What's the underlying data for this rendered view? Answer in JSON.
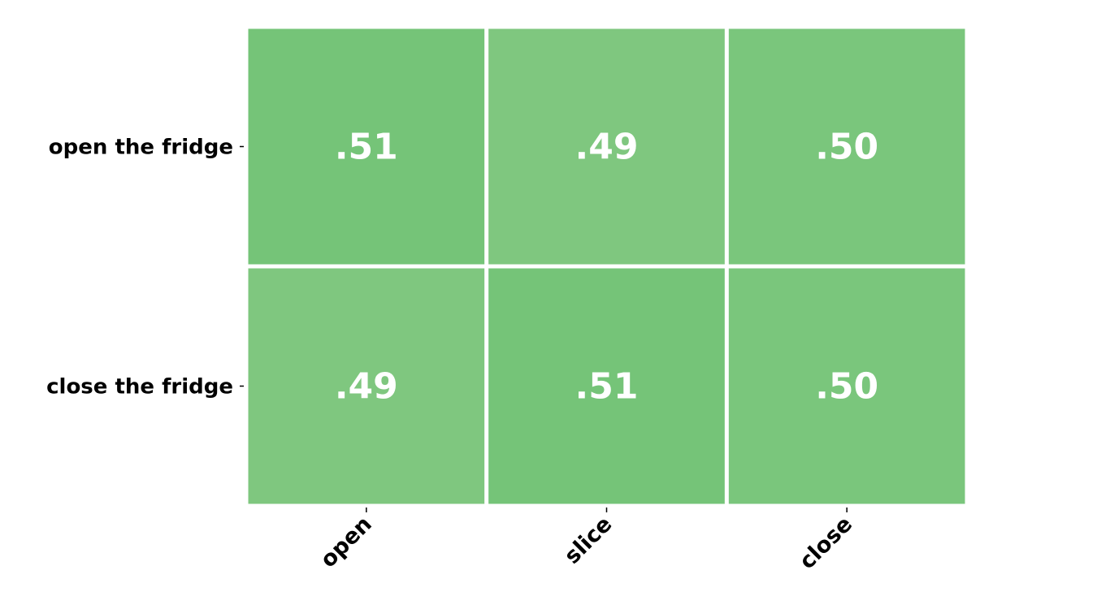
{
  "chart_data": {
    "type": "heatmap",
    "rows": [
      "open the fridge",
      "close the fridge"
    ],
    "columns": [
      "open",
      "slice",
      "close"
    ],
    "values": [
      [
        0.51,
        0.49,
        0.5
      ],
      [
        0.49,
        0.51,
        0.5
      ]
    ],
    "value_labels": [
      [
        ".51",
        ".49",
        ".50"
      ],
      [
        ".49",
        ".51",
        ".50"
      ]
    ],
    "colors": {
      "high": "#75C478",
      "mid": "#7AC67C",
      "low": "#7FC77F",
      "cell_text": "#FFFFFF"
    }
  }
}
